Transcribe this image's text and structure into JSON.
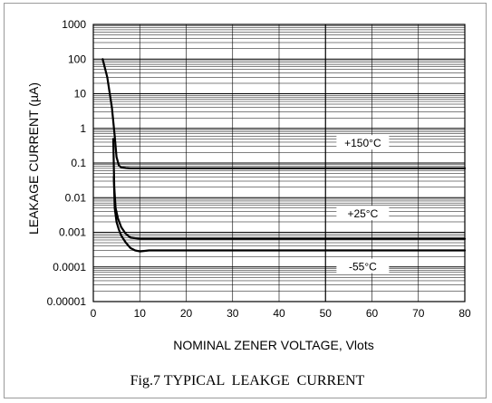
{
  "chart_data": {
    "type": "line",
    "xlabel": "NOMINAL ZENER VOLTAGE, Vlots",
    "ylabel": "LEAKAGE CURRENT (µA)",
    "caption": "Fig.7 TYPICAL  LEAKGE  CURRENT",
    "xlim": [
      0,
      80
    ],
    "ylim": [
      1e-05,
      1000
    ],
    "y_scale": "log",
    "grid": true,
    "x_ticks": [
      "0",
      "10",
      "20",
      "30",
      "40",
      "50",
      "60",
      "70",
      "80"
    ],
    "y_ticks": [
      "1000",
      "100",
      "10",
      "1",
      "0.1",
      "0.01",
      "0.001",
      "0.0001",
      "0.00001"
    ],
    "series": [
      {
        "name": "+150°C",
        "x": [
          2,
          3,
          4,
          4.6,
          5,
          5.5,
          6,
          7,
          8,
          10,
          20,
          40,
          80
        ],
        "y": [
          100,
          30,
          4,
          0.6,
          0.15,
          0.085,
          0.075,
          0.072,
          0.07,
          0.07,
          0.07,
          0.07,
          0.07
        ]
      },
      {
        "name": "+25°C",
        "x": [
          4.3,
          4.5,
          4.8,
          5.3,
          6,
          7,
          8,
          10,
          15,
          30,
          80
        ],
        "y": [
          0.5,
          0.02,
          0.005,
          0.0025,
          0.0014,
          0.0009,
          0.0007,
          0.00065,
          0.00065,
          0.00065,
          0.00065
        ]
      },
      {
        "name": "-55°C",
        "x": [
          4.4,
          4.6,
          5,
          5.5,
          6,
          7,
          8,
          9,
          10,
          12,
          20,
          80
        ],
        "y": [
          0.04,
          0.005,
          0.002,
          0.0012,
          0.0008,
          0.0005,
          0.00035,
          0.0003,
          0.00028,
          0.0003,
          0.0003,
          0.0003
        ]
      }
    ]
  }
}
